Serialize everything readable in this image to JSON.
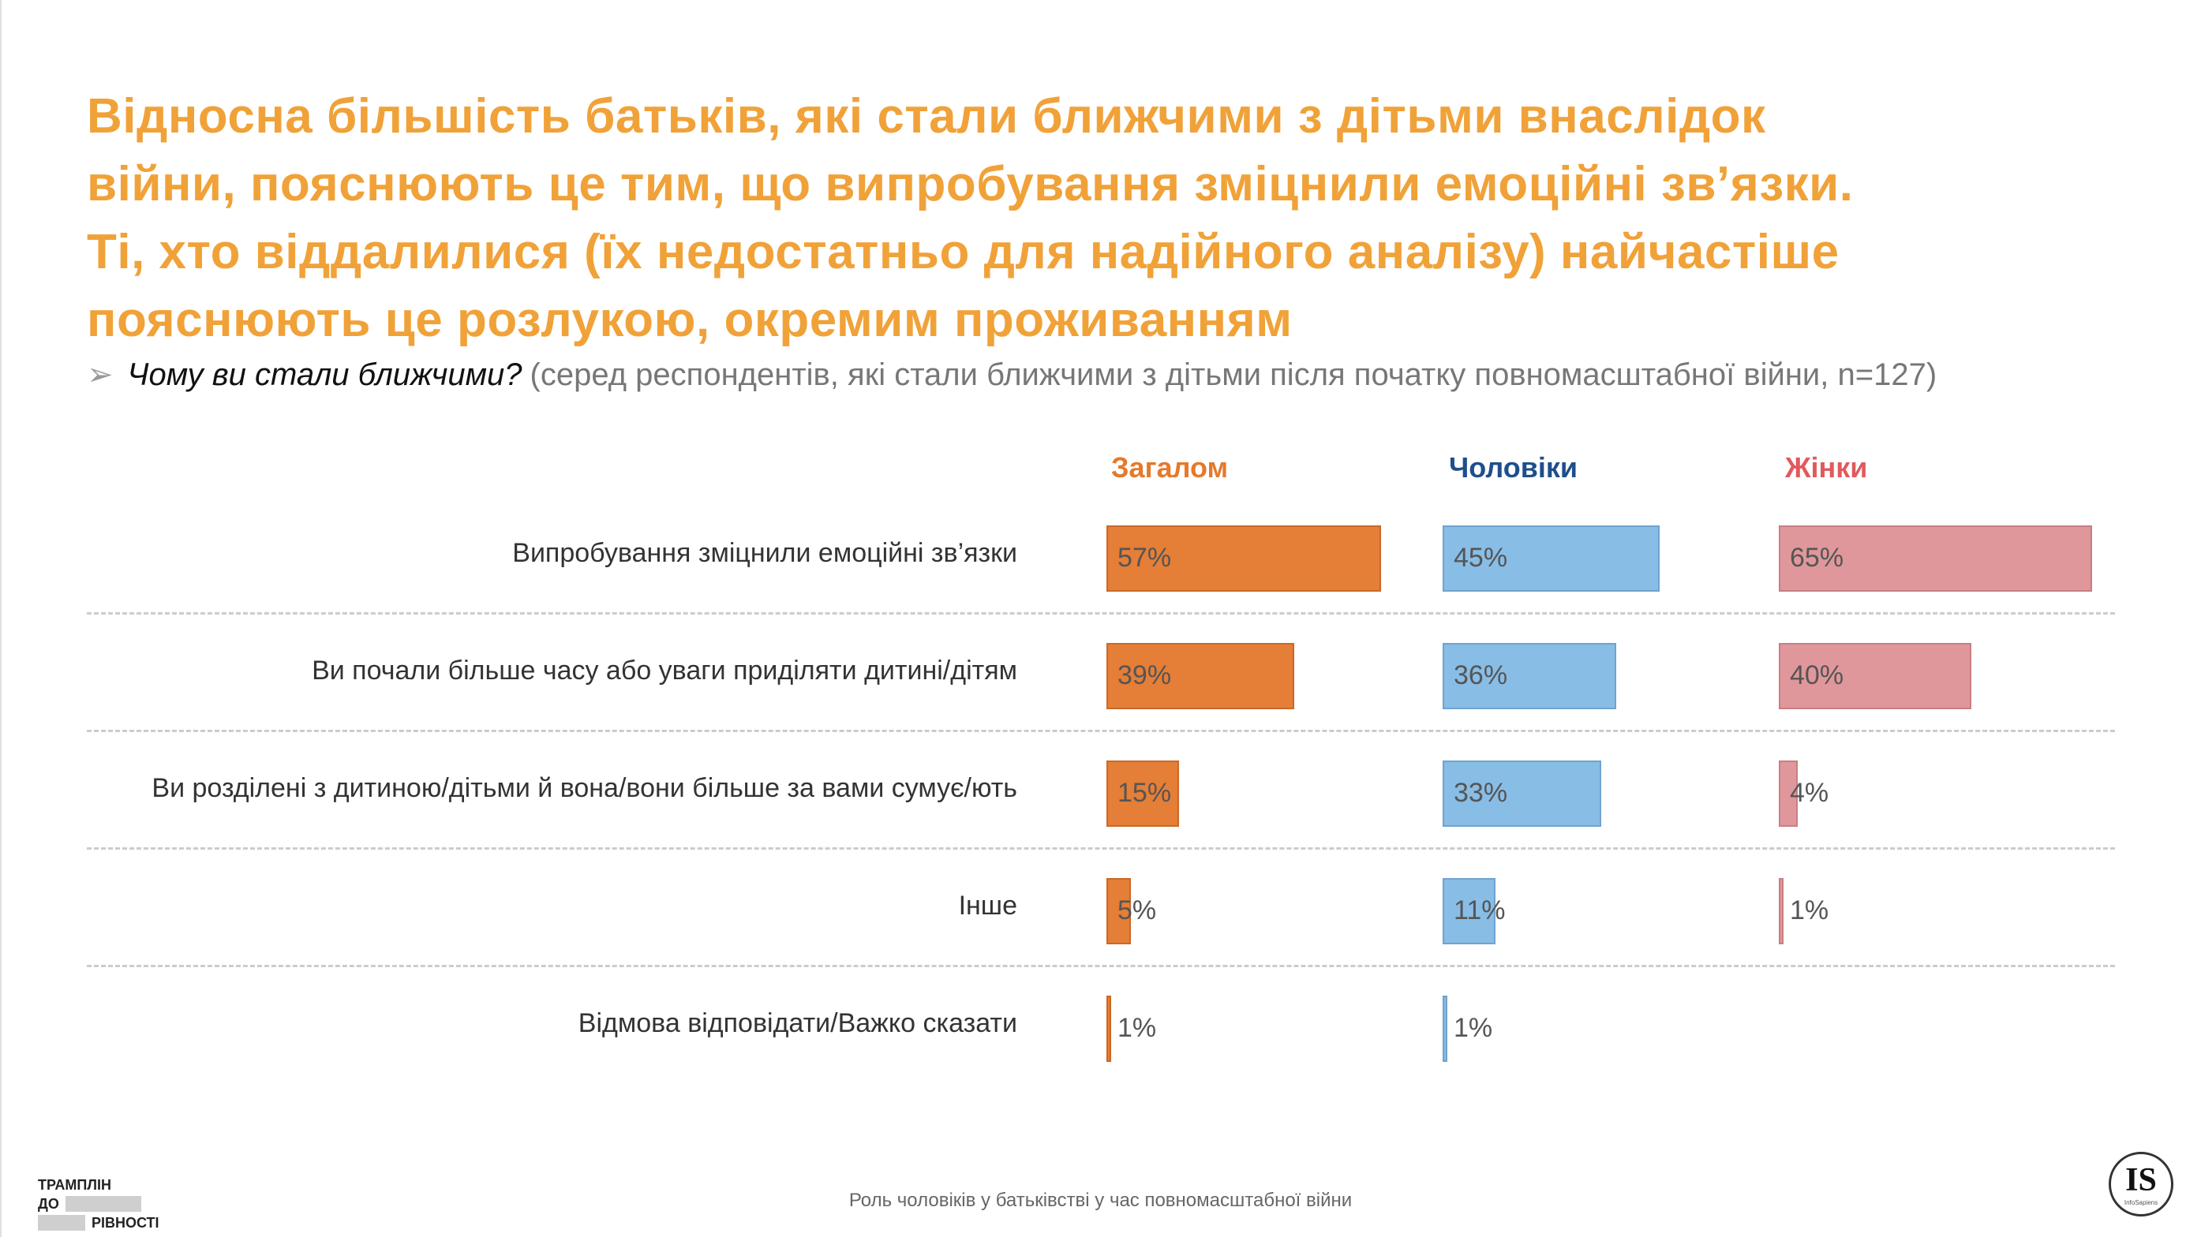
{
  "title_lines": [
    "Відносна більшість батьків, які стали ближчими з дітьми внаслідок",
    "війни, пояснюють це тим, що випробування зміцнили емоційні зв’язки.",
    "Ті, хто віддалилися (їх недостатньо для надійного аналізу) найчастіше",
    "пояснюють це розлукою, окремим проживанням"
  ],
  "subtitle": {
    "arrow": "➢",
    "question": "Чому ви стали ближчими?",
    "note": "(серед респондентів, які стали ближчими з дітьми після початку повномасштабної війни, n=127)"
  },
  "colors": {
    "title": "#F0A239",
    "overall": "#E57E36",
    "men": "#88BDE6",
    "women": "#E0979B",
    "header_overall": "#E5792C",
    "header_men": "#1F4E8C",
    "header_women": "#E05A5E"
  },
  "chart_data": {
    "type": "bar",
    "orientation": "horizontal",
    "categories": [
      "Випробування зміцнили емоційні зв’язки",
      "Ви почали більше часу або уваги приділяти дитині/дітям",
      "Ви розділені з дитиною/дітьми й вона/вони більше за вами сумує/ють",
      "Інше",
      "Відмова відповідати/Важко сказати"
    ],
    "series": [
      {
        "name": "Загалом",
        "values": [
          57,
          39,
          15,
          5,
          1
        ],
        "labels": [
          "57%",
          "39%",
          "15%",
          "5%",
          "1%"
        ]
      },
      {
        "name": "Чоловіки",
        "values": [
          45,
          36,
          33,
          11,
          1
        ],
        "labels": [
          "45%",
          "36%",
          "33%",
          "11%",
          "1%"
        ]
      },
      {
        "name": "Жінки",
        "values": [
          65,
          40,
          4,
          1,
          null
        ],
        "labels": [
          "65%",
          "40%",
          "4%",
          "1%",
          null
        ]
      }
    ],
    "unit": "%",
    "xlim": [
      0,
      100
    ]
  },
  "footer": {
    "caption": "Роль чоловіків у батьківстві у час повномасштабної війни",
    "logo_line1": "ТРАМПЛІН",
    "logo_line2": "ДО",
    "logo_line3": "РІВНОСТІ",
    "is_logo": "IS",
    "is_logo_sub": "InfoSapiens"
  }
}
